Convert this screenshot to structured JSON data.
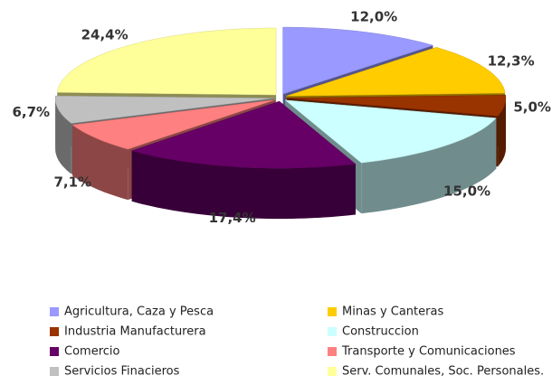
{
  "chart_data": {
    "type": "pie",
    "categories": [
      "Agricultura, Caza y Pesca",
      "Minas y Canteras",
      "Industria Manufacturera",
      "Construccion",
      "Comercio",
      "Transporte y Comunicaciones",
      "Servicios Finacieros",
      "Serv. Comunales, Soc. Personales."
    ],
    "values": [
      12.0,
      12.3,
      5.0,
      15.0,
      17.4,
      7.1,
      6.7,
      24.4
    ],
    "value_labels": [
      "12,0%",
      "12,3%",
      "5,0%",
      "15,0%",
      "17,4%",
      "7,1%",
      "6,7%",
      "24,4%"
    ],
    "colors": [
      "#9999ff",
      "#ffcc00",
      "#993300",
      "#ccffff",
      "#660066",
      "#ff8080",
      "#c0c0c0",
      "#ffff99"
    ],
    "legend": "bottom"
  }
}
